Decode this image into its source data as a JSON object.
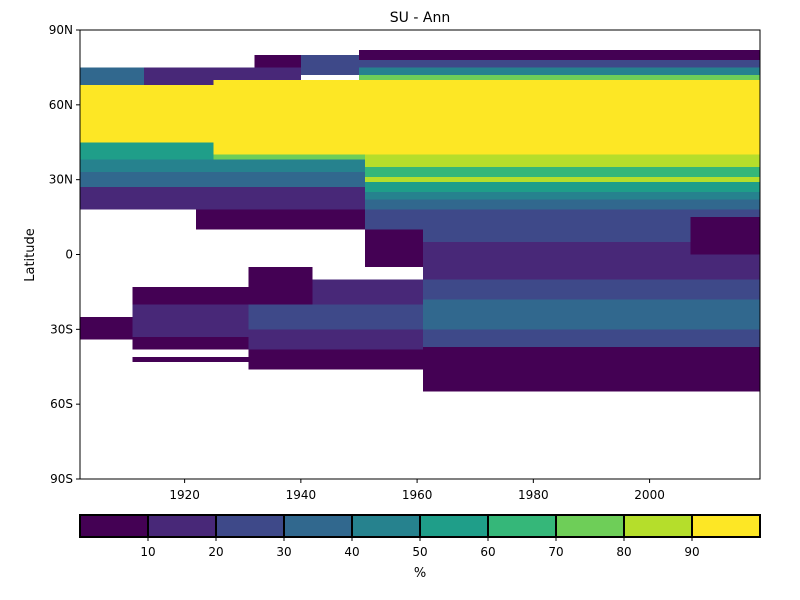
{
  "chart_data": {
    "type": "heatmap",
    "title": "SU - Ann",
    "ylabel": "Latitude",
    "xlabel": "",
    "x_range": [
      1902,
      2019
    ],
    "y_range": [
      -90,
      90
    ],
    "x_ticks": [
      {
        "value": 1920,
        "label": "1920"
      },
      {
        "value": 1940,
        "label": "1940"
      },
      {
        "value": 1960,
        "label": "1960"
      },
      {
        "value": 1980,
        "label": "1980"
      },
      {
        "value": 2000,
        "label": "2000"
      }
    ],
    "y_ticks": [
      {
        "value": 90,
        "label": "90N"
      },
      {
        "value": 60,
        "label": "60N"
      },
      {
        "value": 30,
        "label": "30N"
      },
      {
        "value": 0,
        "label": "0"
      },
      {
        "value": -30,
        "label": "30S"
      },
      {
        "value": -60,
        "label": "60S"
      },
      {
        "value": -90,
        "label": "90S"
      }
    ],
    "colorbar": {
      "label": "%",
      "boundaries": [
        0,
        10,
        20,
        30,
        40,
        50,
        60,
        70,
        80,
        90,
        100
      ],
      "tick_labels": [
        "10",
        "20",
        "30",
        "40",
        "50",
        "60",
        "70",
        "80",
        "90"
      ],
      "colors": [
        "#440154",
        "#482878",
        "#3e4989",
        "#31688e",
        "#26828e",
        "#1f9e89",
        "#35b779",
        "#6ece58",
        "#b5de2b",
        "#fde725"
      ]
    },
    "grid": false,
    "regions": [
      {
        "x": [
          1902,
          1913
        ],
        "lat": [
          60,
          75
        ],
        "value": 35
      },
      {
        "x": [
          1913,
          1940
        ],
        "lat": [
          66,
          75
        ],
        "value": 15
      },
      {
        "x": [
          1932,
          1948
        ],
        "lat": [
          75,
          80
        ],
        "value": 5
      },
      {
        "x": [
          1940,
          1950
        ],
        "lat": [
          72,
          80
        ],
        "value": 25
      },
      {
        "x": [
          1950,
          2019
        ],
        "lat": [
          78,
          82
        ],
        "value": 5
      },
      {
        "x": [
          1950,
          2019
        ],
        "lat": [
          75,
          78
        ],
        "value": 25
      },
      {
        "x": [
          1950,
          2019
        ],
        "lat": [
          72,
          75
        ],
        "value": 45
      },
      {
        "x": [
          1950,
          2019
        ],
        "lat": [
          70,
          72
        ],
        "value": 75
      },
      {
        "x": [
          1902,
          1925
        ],
        "lat": [
          45,
          68
        ],
        "value": 95
      },
      {
        "x": [
          1925,
          2019
        ],
        "lat": [
          40,
          70
        ],
        "value": 95
      },
      {
        "x": [
          1902,
          1925
        ],
        "lat": [
          38,
          45
        ],
        "value": 55
      },
      {
        "x": [
          1925,
          1951
        ],
        "lat": [
          38,
          40
        ],
        "value": 75
      },
      {
        "x": [
          1902,
          1951
        ],
        "lat": [
          33,
          38
        ],
        "value": 45
      },
      {
        "x": [
          1902,
          1951
        ],
        "lat": [
          27,
          33
        ],
        "value": 35
      },
      {
        "x": [
          1902,
          1951
        ],
        "lat": [
          18,
          27
        ],
        "value": 15
      },
      {
        "x": [
          1922,
          1951
        ],
        "lat": [
          10,
          18
        ],
        "value": 5
      },
      {
        "x": [
          1951,
          2019
        ],
        "lat": [
          35,
          40
        ],
        "value": 85
      },
      {
        "x": [
          1951,
          2019
        ],
        "lat": [
          31,
          35
        ],
        "value": 65
      },
      {
        "x": [
          1951,
          2019
        ],
        "lat": [
          29,
          31
        ],
        "value": 85
      },
      {
        "x": [
          1951,
          2019
        ],
        "lat": [
          25,
          29
        ],
        "value": 55
      },
      {
        "x": [
          1951,
          2019
        ],
        "lat": [
          22,
          25
        ],
        "value": 45
      },
      {
        "x": [
          1951,
          2019
        ],
        "lat": [
          18,
          22
        ],
        "value": 35
      },
      {
        "x": [
          1951,
          2019
        ],
        "lat": [
          10,
          18
        ],
        "value": 25
      },
      {
        "x": [
          1951,
          1961
        ],
        "lat": [
          -5,
          10
        ],
        "value": 5
      },
      {
        "x": [
          1961,
          2019
        ],
        "lat": [
          5,
          10
        ],
        "value": 25
      },
      {
        "x": [
          1961,
          2019
        ],
        "lat": [
          -10,
          5
        ],
        "value": 15
      },
      {
        "x": [
          2007,
          2019
        ],
        "lat": [
          0,
          15
        ],
        "value": 5
      },
      {
        "x": [
          1911,
          1931
        ],
        "lat": [
          -20,
          -13
        ],
        "value": 5
      },
      {
        "x": [
          1911,
          1931
        ],
        "lat": [
          -33,
          -20
        ],
        "value": 15
      },
      {
        "x": [
          1911,
          1931
        ],
        "lat": [
          -38,
          -33
        ],
        "value": 5
      },
      {
        "x": [
          1931,
          1942
        ],
        "lat": [
          -20,
          -5
        ],
        "value": 5
      },
      {
        "x": [
          1942,
          1961
        ],
        "lat": [
          -20,
          -10
        ],
        "value": 15
      },
      {
        "x": [
          1931,
          1961
        ],
        "lat": [
          -30,
          -20
        ],
        "value": 25
      },
      {
        "x": [
          1931,
          1961
        ],
        "lat": [
          -38,
          -30
        ],
        "value": 15
      },
      {
        "x": [
          1961,
          2019
        ],
        "lat": [
          -18,
          -10
        ],
        "value": 25
      },
      {
        "x": [
          1961,
          2019
        ],
        "lat": [
          -30,
          -18
        ],
        "value": 35
      },
      {
        "x": [
          1961,
          2019
        ],
        "lat": [
          -37,
          -30
        ],
        "value": 25
      },
      {
        "x": [
          1931,
          1961
        ],
        "lat": [
          -46,
          -38
        ],
        "value": 5
      },
      {
        "x": [
          1961,
          2019
        ],
        "lat": [
          -55,
          -37
        ],
        "value": 5
      },
      {
        "x": [
          1902,
          1911
        ],
        "lat": [
          -34,
          -25
        ],
        "value": 5
      },
      {
        "x": [
          1911,
          1931
        ],
        "lat": [
          -43,
          -41
        ],
        "value": 5
      }
    ]
  }
}
